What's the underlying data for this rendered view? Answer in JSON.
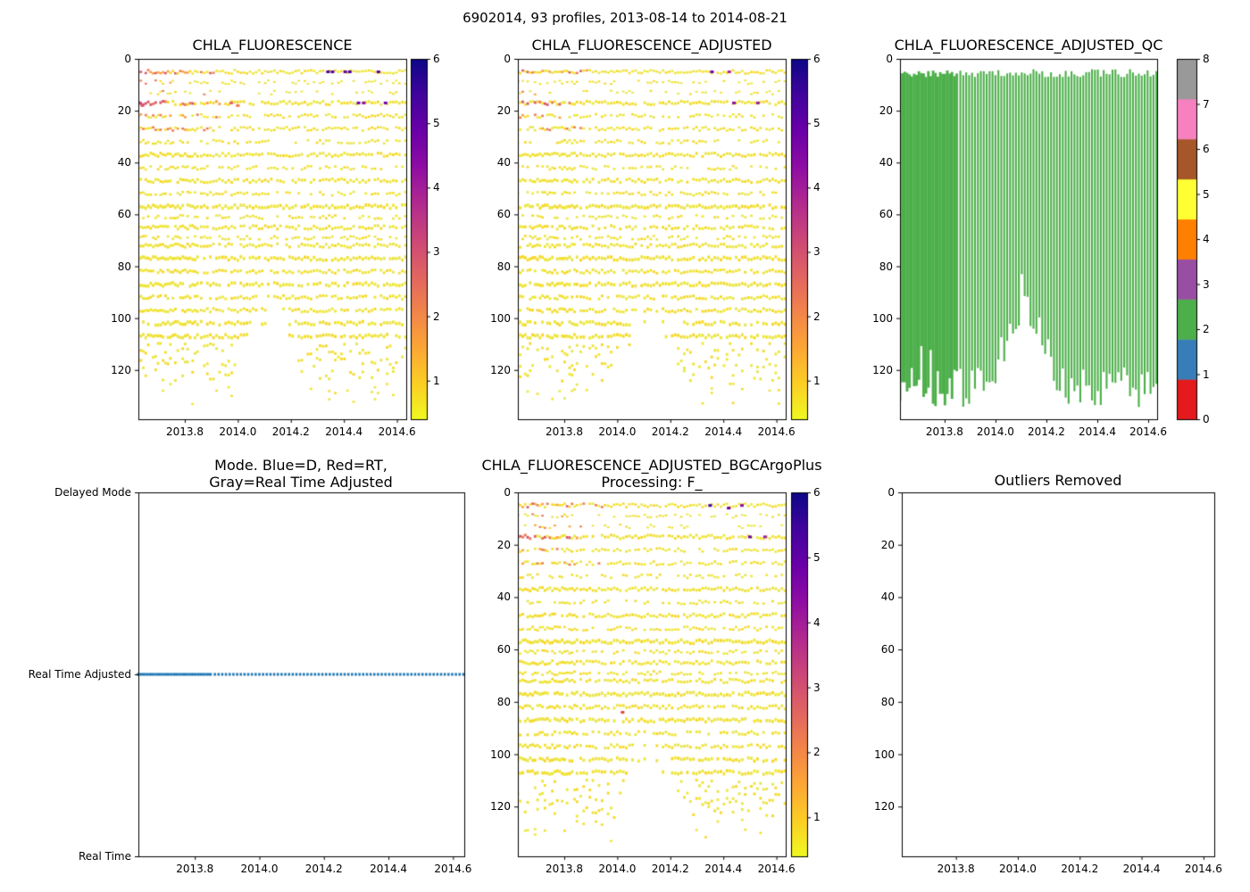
{
  "figure": {
    "title": "6902014, 93 profiles, 2013-08-14 to 2014-08-21",
    "background": "#ffffff",
    "text_color": "#000000"
  },
  "shared": {
    "x_range": [
      2013.625,
      2014.635
    ],
    "x_ticks": [
      2013.8,
      2014.0,
      2014.2,
      2014.4,
      2014.6
    ],
    "x_tick_labels": [
      "2013.8",
      "2014.0",
      "2014.2",
      "2014.4",
      "2014.6"
    ],
    "depth_range": [
      0,
      139
    ],
    "depth_ticks": [
      0,
      20,
      40,
      60,
      80,
      100,
      120
    ],
    "profiles": {
      "count": 93,
      "dense": {
        "start": 2013.625,
        "end": 2013.848,
        "count": 25
      },
      "sparse": {
        "start": 2013.862,
        "end": 2014.632,
        "count": 68
      }
    },
    "plasma_stops": [
      "#0d0887",
      "#41049d",
      "#6a00a8",
      "#8f0da4",
      "#b12a90",
      "#cc4778",
      "#e16462",
      "#f2844b",
      "#fca636",
      "#fcce25",
      "#f0f921"
    ],
    "yellow_palette": [
      "#eee836",
      "#f2e12f",
      "#e9e44a",
      "#f6d825"
    ],
    "bands": [
      [
        5,
        0.95,
        2.5
      ],
      [
        9,
        0.5,
        2
      ],
      [
        13,
        0.35,
        2
      ],
      [
        17,
        0.9,
        3
      ],
      [
        22,
        0.65,
        2.5
      ],
      [
        27,
        0.8,
        2.5
      ],
      [
        32,
        0.55,
        2.5
      ],
      [
        37,
        0.95,
        3
      ],
      [
        42,
        0.6,
        2.5
      ],
      [
        47,
        0.9,
        3
      ],
      [
        52,
        0.65,
        2.5
      ],
      [
        57,
        0.95,
        3.5
      ],
      [
        61,
        0.55,
        2.5
      ],
      [
        65,
        0.85,
        3
      ],
      [
        69,
        0.6,
        2.5
      ],
      [
        72,
        0.9,
        3
      ],
      [
        77,
        0.95,
        3.5
      ],
      [
        82,
        0.85,
        3
      ],
      [
        87,
        0.9,
        3.5
      ],
      [
        92,
        0.75,
        3
      ],
      [
        97,
        0.85,
        3
      ],
      [
        102,
        0.8,
        3.5
      ],
      [
        107,
        0.9,
        3.5
      ],
      [
        112,
        0.55,
        3
      ],
      [
        117,
        0.5,
        3
      ],
      [
        122,
        0.45,
        3
      ],
      [
        127,
        0.4,
        2.5
      ],
      [
        131,
        0.32,
        2.5
      ],
      [
        135,
        0.25,
        2
      ]
    ],
    "bottom_profile": {
      "base": 127,
      "noise": 16,
      "hump_center": 2014.12,
      "hump_halfwidth": 0.13,
      "hump_depth": 30,
      "max": 138.5
    }
  },
  "chart_data": [
    {
      "type": "scatter",
      "title": "CHLA_FLUORESCENCE",
      "x_ticks": [
        2013.8,
        2014.0,
        2014.2,
        2014.4,
        2014.6
      ],
      "y_ticks": [
        0,
        20,
        40,
        60,
        80,
        100,
        120
      ],
      "y_inverted": true,
      "colorbar": {
        "range": [
          0.4,
          6
        ],
        "ticks": [
          1,
          2,
          3,
          4,
          5,
          6
        ],
        "colormap": "plasma_r"
      },
      "warm": {
        "x_max": 2013.95,
        "depth_max": 30,
        "intensity": 1.0
      },
      "extra_points": [
        [
          2014.34,
          5,
          "#46039f"
        ],
        [
          2014.357,
          5,
          "#5b02a3"
        ],
        [
          2014.405,
          5,
          "#6a00a8"
        ],
        [
          2014.422,
          5,
          "#46039f"
        ],
        [
          2014.455,
          17,
          "#7201a8"
        ],
        [
          2014.475,
          17,
          "#8f0da4"
        ],
        [
          2014.53,
          5,
          "#5b02a3"
        ],
        [
          2014.557,
          17,
          "#7201a8"
        ],
        [
          2013.975,
          17,
          "#e16462"
        ],
        [
          2014.0,
          18,
          "#ed7953"
        ],
        [
          2013.63,
          17,
          "#cc4778"
        ],
        [
          2013.64,
          18,
          "#d8576b"
        ]
      ],
      "seed": 101
    },
    {
      "type": "scatter",
      "title": "CHLA_FLUORESCENCE_ADJUSTED",
      "x_ticks": [
        2013.8,
        2014.0,
        2014.2,
        2014.4,
        2014.6
      ],
      "y_ticks": [
        0,
        20,
        40,
        60,
        80,
        100,
        120
      ],
      "y_inverted": true,
      "colorbar": {
        "range": [
          0.4,
          6
        ],
        "ticks": [
          1,
          2,
          3,
          4,
          5,
          6
        ],
        "colormap": "plasma_r"
      },
      "warm": {
        "x_max": 2013.9,
        "depth_max": 30,
        "intensity": 0.55
      },
      "extra_points": [
        [
          2014.357,
          5,
          "#7201a8"
        ],
        [
          2014.44,
          17,
          "#8f0da4"
        ],
        [
          2014.53,
          17,
          "#9c179e"
        ],
        [
          2014.422,
          5,
          "#b12a90"
        ]
      ],
      "seed": 202
    },
    {
      "type": "qc_bar",
      "title": "CHLA_FLUORESCENCE_ADJUSTED_QC",
      "x_ticks": [
        2013.8,
        2014.0,
        2014.2,
        2014.4,
        2014.6
      ],
      "y_ticks": [
        0,
        20,
        40,
        60,
        80,
        100,
        120
      ],
      "y_inverted": true,
      "qc_value": 2,
      "bar_color": "#4daf4a",
      "depth_top": 5,
      "n_profiles": 93,
      "colorbar": {
        "ticks": [
          0,
          1,
          2,
          3,
          4,
          5,
          6,
          7,
          8
        ],
        "colors": [
          "#e41a1c",
          "#377eb8",
          "#4daf4a",
          "#984ea3",
          "#ff7f00",
          "#ffff33",
          "#a65628",
          "#f781bf",
          "#999999"
        ]
      },
      "seed": 303
    },
    {
      "type": "mode_line",
      "title": "Mode. Blue=D, Red=RT,\nGray=Real Time Adjusted",
      "x_ticks": [
        2013.8,
        2014.0,
        2014.2,
        2014.4,
        2014.6
      ],
      "categories": [
        "Delayed Mode",
        "Real Time Adjusted",
        "Real Time"
      ],
      "current_mode": "Real Time Adjusted",
      "line_color": "#1f77b4",
      "style": "dotted"
    },
    {
      "type": "scatter",
      "title": "CHLA_FLUORESCENCE_ADJUSTED_BGCArgoPlus\nProcessing: F_",
      "x_ticks": [
        2013.8,
        2014.0,
        2014.2,
        2014.4,
        2014.6
      ],
      "y_ticks": [
        0,
        20,
        40,
        60,
        80,
        100,
        120
      ],
      "y_inverted": true,
      "colorbar": {
        "range": [
          0.4,
          6
        ],
        "ticks": [
          1,
          2,
          3,
          4,
          5,
          6
        ],
        "colormap": "plasma_r"
      },
      "warm": {
        "x_max": 2013.95,
        "depth_max": 30,
        "intensity": 0.8
      },
      "extra_points": [
        [
          2014.35,
          5,
          "#46039f"
        ],
        [
          2014.42,
          6,
          "#6a00a8"
        ],
        [
          2014.47,
          5,
          "#8f0da4"
        ],
        [
          2014.5,
          17,
          "#7201a8"
        ],
        [
          2014.557,
          17,
          "#9c179e"
        ],
        [
          2014.02,
          84,
          "#dd4b3a"
        ]
      ],
      "seed": 404
    },
    {
      "type": "empty",
      "title": "Outliers Removed",
      "x_ticks": [
        2013.8,
        2014.0,
        2014.2,
        2014.4,
        2014.6
      ],
      "y_ticks": [
        0,
        20,
        40,
        60,
        80,
        100,
        120
      ],
      "y_inverted": true
    }
  ]
}
